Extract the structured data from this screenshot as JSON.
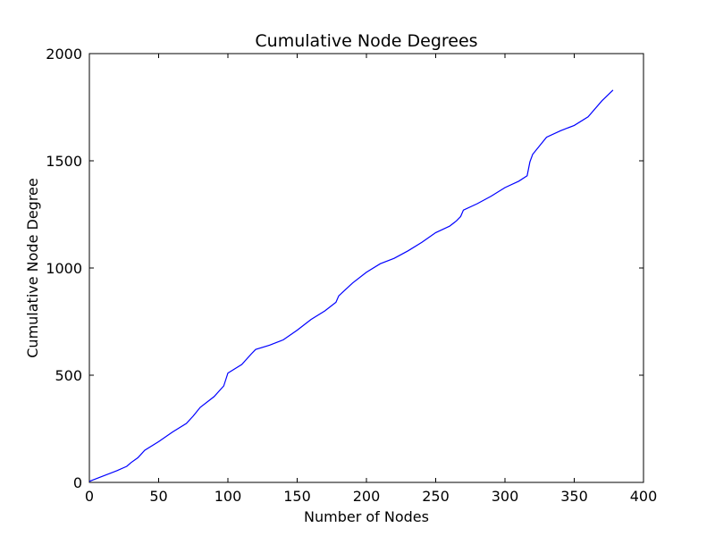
{
  "chart_data": {
    "type": "line",
    "title": "Cumulative Node Degrees",
    "xlabel": "Number of Nodes",
    "ylabel": "Cumulative Node Degree",
    "xlim": [
      0,
      400
    ],
    "ylim": [
      0,
      2000
    ],
    "xticks": [
      "0",
      "50",
      "100",
      "150",
      "200",
      "250",
      "300",
      "350",
      "400"
    ],
    "yticks": [
      "0",
      "500",
      "1000",
      "1500",
      "2000"
    ],
    "grid": false,
    "legend": "none",
    "line_color": "#0000ff",
    "series": [
      {
        "x": [
          0,
          10,
          20,
          27,
          30,
          35,
          40,
          50,
          60,
          70,
          75,
          80,
          90,
          97,
          100,
          110,
          117,
          120,
          130,
          140,
          150,
          160,
          170,
          178,
          180,
          190,
          200,
          210,
          220,
          230,
          240,
          250,
          260,
          265,
          268,
          270,
          280,
          290,
          300,
          310,
          316,
          318,
          320,
          330,
          340,
          350,
          360,
          370,
          378
        ],
        "y": [
          5,
          30,
          55,
          75,
          92,
          115,
          150,
          190,
          235,
          275,
          310,
          350,
          400,
          450,
          510,
          550,
          600,
          620,
          640,
          665,
          710,
          760,
          800,
          840,
          870,
          930,
          980,
          1020,
          1045,
          1080,
          1120,
          1165,
          1195,
          1220,
          1240,
          1270,
          1300,
          1335,
          1375,
          1405,
          1430,
          1495,
          1530,
          1610,
          1640,
          1665,
          1705,
          1780,
          1830
        ]
      }
    ]
  }
}
